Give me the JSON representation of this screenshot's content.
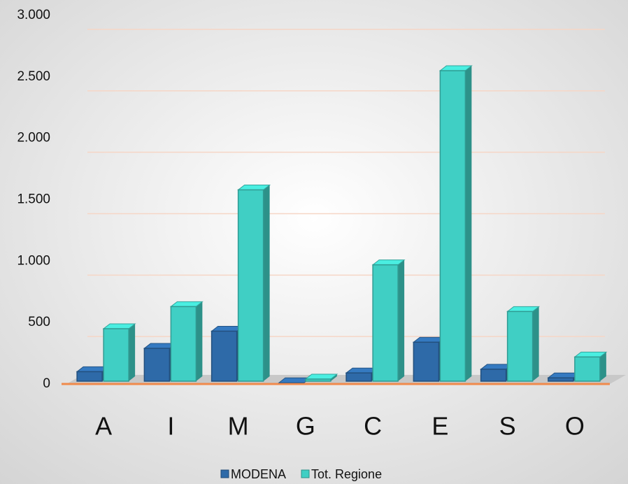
{
  "chart_data": {
    "type": "bar3d",
    "categories": [
      "A",
      "I",
      "M",
      "G",
      "C",
      "E",
      "S",
      "O"
    ],
    "series": [
      {
        "name": "MODENA",
        "color": "#2e6aa8",
        "values": [
          100,
          290,
          430,
          10,
          90,
          340,
          120,
          50
        ]
      },
      {
        "name": "Tot. Regione",
        "color": "#40cfc4",
        "values": [
          450,
          630,
          1580,
          40,
          970,
          2550,
          590,
          220
        ]
      }
    ],
    "ylim": [
      0,
      3000
    ],
    "yticks": [
      0,
      500,
      {
        "value": 1000,
        "label": "1.000"
      },
      {
        "value": 1500,
        "label": "1.500"
      },
      {
        "value": 2000,
        "label": "2.000"
      },
      {
        "value": 2500,
        "label": "2.500"
      },
      {
        "value": 3000,
        "label": "3.000"
      }
    ],
    "grid": true,
    "legend": "bottom"
  }
}
